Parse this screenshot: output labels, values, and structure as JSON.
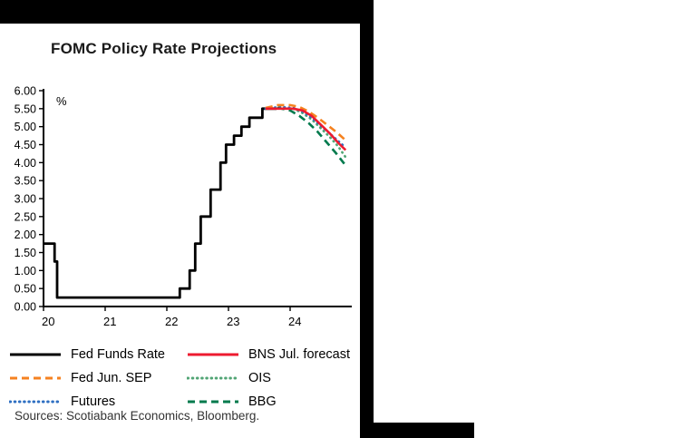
{
  "footer": {
    "sources": "Sources: Scotiabank Economics, Bloomberg."
  },
  "legend": {
    "columns": [
      [
        0,
        2,
        4
      ],
      [
        1,
        3,
        5
      ]
    ]
  },
  "chart_data": {
    "type": "line",
    "title": "FOMC Policy Rate Projections",
    "y_unit_label": "%",
    "xlabel": "",
    "ylabel": "%",
    "xlim": [
      20,
      25
    ],
    "ylim": [
      0,
      6
    ],
    "grid": false,
    "legend_position": "below",
    "x_ticks": [
      "20",
      "21",
      "22",
      "23",
      "24"
    ],
    "y_ticks": [
      "0.00",
      "0.50",
      "1.00",
      "1.50",
      "2.00",
      "2.50",
      "3.00",
      "3.50",
      "4.00",
      "4.50",
      "5.00",
      "5.50",
      "6.00"
    ],
    "series": [
      {
        "name": "Fed Funds Rate",
        "color": "#000000",
        "style": "solid",
        "points": [
          [
            20.0,
            1.75
          ],
          [
            20.18,
            1.75
          ],
          [
            20.18,
            1.25
          ],
          [
            20.22,
            1.25
          ],
          [
            20.22,
            0.25
          ],
          [
            22.21,
            0.25
          ],
          [
            22.21,
            0.5
          ],
          [
            22.37,
            0.5
          ],
          [
            22.37,
            1.0
          ],
          [
            22.46,
            1.0
          ],
          [
            22.46,
            1.75
          ],
          [
            22.55,
            1.75
          ],
          [
            22.55,
            2.5
          ],
          [
            22.71,
            2.5
          ],
          [
            22.71,
            3.25
          ],
          [
            22.87,
            3.25
          ],
          [
            22.87,
            4.0
          ],
          [
            22.96,
            4.0
          ],
          [
            22.96,
            4.5
          ],
          [
            23.09,
            4.5
          ],
          [
            23.09,
            4.75
          ],
          [
            23.21,
            4.75
          ],
          [
            23.21,
            5.0
          ],
          [
            23.34,
            5.0
          ],
          [
            23.34,
            5.25
          ],
          [
            23.55,
            5.25
          ],
          [
            23.55,
            5.5
          ],
          [
            23.78,
            5.5
          ]
        ]
      },
      {
        "name": "BNS Jul. forecast",
        "color": "#ed1b2f",
        "style": "solid",
        "points": [
          [
            23.6,
            5.5
          ],
          [
            24.05,
            5.5
          ],
          [
            24.2,
            5.45
          ],
          [
            24.35,
            5.3
          ],
          [
            24.5,
            5.05
          ],
          [
            24.65,
            4.8
          ],
          [
            24.78,
            4.55
          ],
          [
            24.9,
            4.35
          ]
        ]
      },
      {
        "name": "Fed Jun. SEP",
        "color": "#f58220",
        "style": "dashed",
        "points": [
          [
            23.6,
            5.52
          ],
          [
            23.8,
            5.6
          ],
          [
            24.0,
            5.6
          ],
          [
            24.15,
            5.55
          ],
          [
            24.3,
            5.42
          ],
          [
            24.45,
            5.25
          ],
          [
            24.6,
            5.05
          ],
          [
            24.75,
            4.85
          ],
          [
            24.9,
            4.62
          ]
        ]
      },
      {
        "name": "OIS",
        "color": "#52a575",
        "style": "dotted",
        "points": [
          [
            23.6,
            5.5
          ],
          [
            23.85,
            5.55
          ],
          [
            24.05,
            5.5
          ],
          [
            24.2,
            5.38
          ],
          [
            24.35,
            5.2
          ],
          [
            24.5,
            4.95
          ],
          [
            24.65,
            4.7
          ],
          [
            24.78,
            4.45
          ],
          [
            24.9,
            4.15
          ]
        ]
      },
      {
        "name": "Futures",
        "color": "#2e6fc2",
        "style": "dotted",
        "points": [
          [
            23.6,
            5.5
          ],
          [
            23.85,
            5.55
          ],
          [
            24.05,
            5.52
          ],
          [
            24.2,
            5.42
          ],
          [
            24.35,
            5.25
          ],
          [
            24.5,
            5.02
          ],
          [
            24.65,
            4.8
          ],
          [
            24.78,
            4.6
          ],
          [
            24.9,
            4.42
          ]
        ]
      },
      {
        "name": "BBG",
        "color": "#007a4d",
        "style": "dashed",
        "points": [
          [
            23.6,
            5.5
          ],
          [
            23.8,
            5.52
          ],
          [
            24.0,
            5.45
          ],
          [
            24.15,
            5.3
          ],
          [
            24.3,
            5.1
          ],
          [
            24.45,
            4.85
          ],
          [
            24.6,
            4.55
          ],
          [
            24.75,
            4.25
          ],
          [
            24.9,
            3.92
          ]
        ]
      }
    ]
  }
}
